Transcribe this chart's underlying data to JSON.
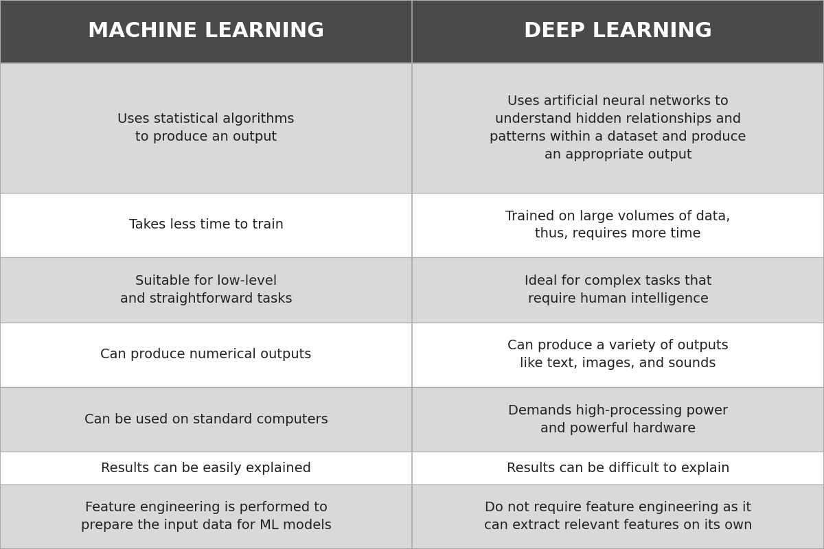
{
  "title_left": "MACHINE LEARNING",
  "title_right": "DEEP LEARNING",
  "header_bg": "#4a4a4a",
  "header_text_color": "#ffffff",
  "row_bg_odd": "#d9d9d9",
  "row_bg_even": "#ffffff",
  "divider_color": "#aaaaaa",
  "text_color": "#222222",
  "rows": [
    [
      "Uses statistical algorithms\nto produce an output",
      "Uses artificial neural networks to\nunderstand hidden relationships and\npatterns within a dataset and produce\nan appropriate output"
    ],
    [
      "Takes less time to train",
      "Trained on large volumes of data,\nthus, requires more time"
    ],
    [
      "Suitable for low-level\nand straightforward tasks",
      "Ideal for complex tasks that\nrequire human intelligence"
    ],
    [
      "Can produce numerical outputs",
      "Can produce a variety of outputs\nlike text, images, and sounds"
    ],
    [
      "Can be used on standard computers",
      "Demands high-processing power\nand powerful hardware"
    ],
    [
      "Results can be easily explained",
      "Results can be difficult to explain"
    ],
    [
      "Feature engineering is performed to\nprepare the input data for ML models",
      "Do not require feature engineering as it\ncan extract relevant features on its own"
    ]
  ],
  "figsize": [
    12.0,
    8.0
  ],
  "dpi": 100,
  "header_fontsize": 22,
  "cell_fontsize": 14
}
